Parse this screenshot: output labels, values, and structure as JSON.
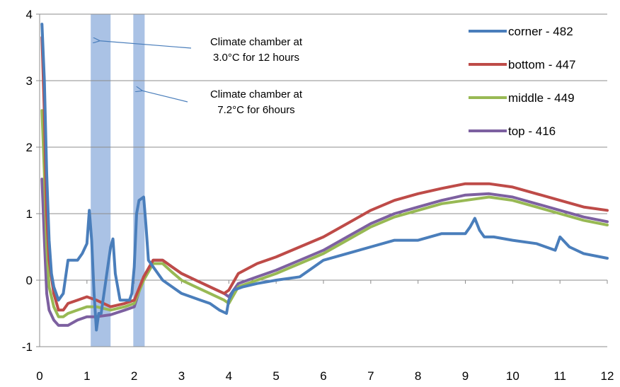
{
  "chart_data": {
    "type": "line",
    "title": "",
    "xlabel": "",
    "ylabel": "",
    "xlim": [
      0,
      12
    ],
    "ylim": [
      -1,
      4
    ],
    "x_ticks": [
      "0",
      "1",
      "2",
      "3",
      "4",
      "5",
      "6",
      "7",
      "8",
      "9",
      "10",
      "11",
      "12"
    ],
    "y_ticks": [
      "-1",
      "0",
      "1",
      "2",
      "3",
      "4"
    ],
    "grid": "horizontal",
    "legend_position": "top-right",
    "shaded_bands": [
      {
        "x_start": 1.08,
        "x_end": 1.5,
        "color": "#9bb7e0"
      },
      {
        "x_start": 1.98,
        "x_end": 2.22,
        "color": "#9bb7e0"
      }
    ],
    "annotations": [
      {
        "lines": [
          "Climate chamber at",
          "3.0°C for 12 hours"
        ],
        "arrow_to": [
          1.2,
          3.6
        ]
      },
      {
        "lines": [
          "Climate chamber at",
          "7.2°C for 6hours"
        ],
        "arrow_to": [
          2.1,
          2.85
        ]
      }
    ],
    "series": [
      {
        "name": "corner - 482",
        "color": "#4a7ebb",
        "x": [
          0.05,
          0.1,
          0.15,
          0.2,
          0.25,
          0.3,
          0.4,
          0.5,
          0.6,
          0.7,
          0.8,
          0.9,
          1.0,
          1.05,
          1.1,
          1.15,
          1.2,
          1.25,
          1.3,
          1.4,
          1.5,
          1.55,
          1.6,
          1.7,
          1.8,
          1.9,
          1.95,
          2.0,
          2.05,
          2.1,
          2.2,
          2.25,
          2.3,
          2.4,
          2.6,
          2.8,
          3.0,
          3.2,
          3.4,
          3.6,
          3.8,
          3.95,
          4.0,
          4.1,
          4.3,
          4.6,
          5.0,
          5.5,
          6.0,
          6.5,
          7.0,
          7.5,
          8.0,
          8.5,
          9.0,
          9.1,
          9.2,
          9.3,
          9.4,
          9.6,
          10.0,
          10.5,
          10.9,
          11.0,
          11.2,
          11.5,
          12.0
        ],
        "values": [
          3.85,
          3.0,
          1.6,
          0.6,
          0.1,
          -0.1,
          -0.3,
          -0.2,
          0.3,
          0.3,
          0.3,
          0.4,
          0.55,
          1.05,
          0.6,
          -0.2,
          -0.75,
          -0.5,
          -0.5,
          0.0,
          0.5,
          0.62,
          0.1,
          -0.3,
          -0.3,
          -0.3,
          -0.2,
          0.2,
          1.0,
          1.2,
          1.25,
          0.8,
          0.3,
          0.2,
          0.0,
          -0.1,
          -0.2,
          -0.25,
          -0.3,
          -0.35,
          -0.45,
          -0.5,
          -0.3,
          -0.15,
          -0.1,
          -0.05,
          0.0,
          0.05,
          0.3,
          0.4,
          0.5,
          0.6,
          0.6,
          0.7,
          0.7,
          0.8,
          0.93,
          0.75,
          0.65,
          0.65,
          0.6,
          0.55,
          0.45,
          0.65,
          0.5,
          0.4,
          0.33
        ]
      },
      {
        "name": "bottom - 447",
        "color": "#be4b48",
        "x": [
          0.05,
          0.1,
          0.15,
          0.2,
          0.3,
          0.4,
          0.5,
          0.6,
          0.8,
          1.0,
          1.2,
          1.5,
          1.8,
          2.0,
          2.2,
          2.4,
          2.6,
          2.8,
          3.0,
          3.3,
          3.6,
          3.9,
          4.0,
          4.2,
          4.6,
          5.0,
          5.5,
          6.0,
          6.5,
          7.0,
          7.5,
          8.0,
          8.5,
          9.0,
          9.5,
          10.0,
          10.5,
          11.0,
          11.5,
          12.0
        ],
        "values": [
          3.65,
          2.5,
          1.0,
          0.3,
          -0.2,
          -0.45,
          -0.45,
          -0.35,
          -0.3,
          -0.25,
          -0.3,
          -0.4,
          -0.35,
          -0.3,
          0.05,
          0.3,
          0.3,
          0.2,
          0.1,
          0.0,
          -0.1,
          -0.2,
          -0.15,
          0.1,
          0.25,
          0.35,
          0.5,
          0.65,
          0.85,
          1.05,
          1.2,
          1.3,
          1.38,
          1.45,
          1.45,
          1.4,
          1.3,
          1.2,
          1.1,
          1.05
        ]
      },
      {
        "name": "middle - 449",
        "color": "#98b954",
        "x": [
          0.05,
          0.1,
          0.15,
          0.2,
          0.3,
          0.4,
          0.5,
          0.6,
          0.8,
          1.0,
          1.2,
          1.5,
          1.8,
          2.0,
          2.2,
          2.4,
          2.6,
          2.8,
          3.0,
          3.3,
          3.6,
          3.9,
          4.0,
          4.2,
          4.6,
          5.0,
          5.5,
          6.0,
          6.5,
          7.0,
          7.5,
          8.0,
          8.5,
          9.0,
          9.5,
          10.0,
          10.5,
          11.0,
          11.5,
          12.0
        ],
        "values": [
          2.55,
          1.6,
          0.5,
          -0.1,
          -0.4,
          -0.55,
          -0.55,
          -0.5,
          -0.45,
          -0.4,
          -0.4,
          -0.45,
          -0.4,
          -0.35,
          0.0,
          0.25,
          0.25,
          0.12,
          0.0,
          -0.1,
          -0.2,
          -0.3,
          -0.35,
          -0.1,
          0.0,
          0.1,
          0.25,
          0.4,
          0.6,
          0.8,
          0.95,
          1.05,
          1.15,
          1.2,
          1.25,
          1.2,
          1.1,
          1.0,
          0.9,
          0.83
        ]
      },
      {
        "name": "top - 416",
        "color": "#7d60a0",
        "x": [
          0.05,
          0.1,
          0.15,
          0.2,
          0.3,
          0.4,
          0.5,
          0.6,
          0.8,
          1.0,
          1.2,
          1.5,
          1.8,
          2.0,
          2.2,
          2.4,
          2.6,
          2.8,
          3.0,
          3.3,
          3.6,
          3.9,
          4.0,
          4.2,
          4.6,
          5.0,
          5.5,
          6.0,
          6.5,
          7.0,
          7.5,
          8.0,
          8.5,
          9.0,
          9.5,
          10.0,
          10.5,
          11.0,
          11.5,
          12.0
        ],
        "values": [
          1.52,
          0.6,
          -0.2,
          -0.45,
          -0.6,
          -0.68,
          -0.68,
          -0.68,
          -0.6,
          -0.55,
          -0.55,
          -0.52,
          -0.45,
          -0.4,
          0.05,
          0.3,
          0.3,
          0.2,
          0.1,
          0.0,
          -0.1,
          -0.2,
          -0.25,
          -0.05,
          0.05,
          0.15,
          0.3,
          0.45,
          0.65,
          0.85,
          1.0,
          1.1,
          1.2,
          1.28,
          1.3,
          1.25,
          1.15,
          1.05,
          0.95,
          0.88
        ]
      }
    ]
  }
}
